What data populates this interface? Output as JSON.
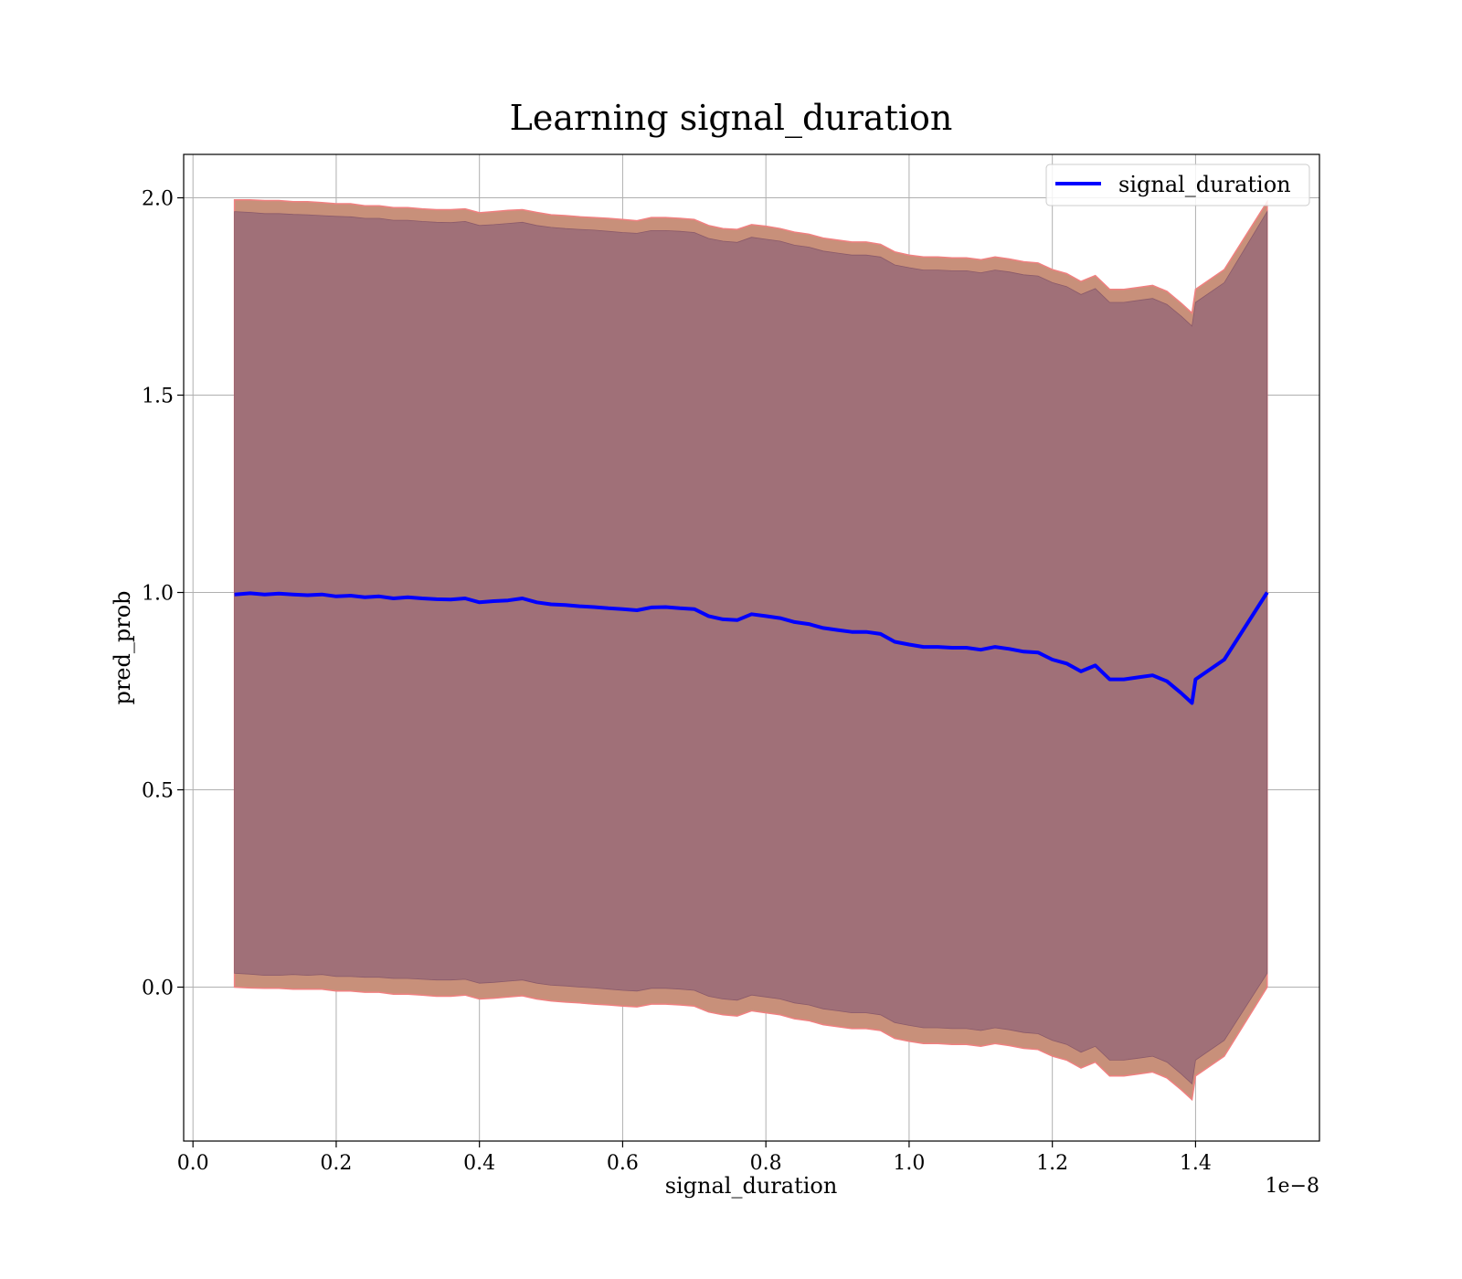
{
  "chart_data": {
    "type": "line",
    "title": "Learning signal_duration",
    "xlabel": "signal_duration",
    "ylabel": "pred_prob",
    "x_offset_text": "1e−8",
    "xlim": [
      -0.013,
      1.573
    ],
    "ylim": [
      -0.39,
      2.11
    ],
    "x_ticks": [
      0.0,
      0.2,
      0.4,
      0.6,
      0.8,
      1.0,
      1.2,
      1.4
    ],
    "x_tick_labels": [
      "0.0",
      "0.2",
      "0.4",
      "0.6",
      "0.8",
      "1.0",
      "1.2",
      "1.4"
    ],
    "y_ticks": [
      0.0,
      0.5,
      1.0,
      1.5,
      2.0
    ],
    "y_tick_labels": [
      "0.0",
      "0.5",
      "1.0",
      "1.5",
      "2.0"
    ],
    "grid": true,
    "legend_position": "top-right",
    "colors": {
      "line": "#0000ff",
      "band_outer": "#c8907a",
      "band_outer_edge": "#f08080",
      "band_inner": "#a07078"
    },
    "series": [
      {
        "name": "signal_duration",
        "x": [
          0.058,
          0.08,
          0.1,
          0.12,
          0.14,
          0.16,
          0.18,
          0.2,
          0.22,
          0.24,
          0.26,
          0.28,
          0.3,
          0.32,
          0.34,
          0.36,
          0.38,
          0.4,
          0.42,
          0.44,
          0.46,
          0.48,
          0.5,
          0.52,
          0.54,
          0.56,
          0.58,
          0.6,
          0.62,
          0.64,
          0.66,
          0.68,
          0.7,
          0.72,
          0.74,
          0.76,
          0.78,
          0.8,
          0.82,
          0.84,
          0.86,
          0.88,
          0.9,
          0.92,
          0.94,
          0.96,
          0.98,
          1.0,
          1.02,
          1.04,
          1.06,
          1.08,
          1.1,
          1.12,
          1.14,
          1.16,
          1.18,
          1.2,
          1.22,
          1.24,
          1.26,
          1.28,
          1.3,
          1.32,
          1.34,
          1.36,
          1.38,
          1.395,
          1.4,
          1.44,
          1.5
        ],
        "y": [
          0.995,
          0.998,
          0.995,
          0.997,
          0.995,
          0.993,
          0.995,
          0.99,
          0.992,
          0.988,
          0.99,
          0.985,
          0.988,
          0.985,
          0.983,
          0.982,
          0.985,
          0.975,
          0.978,
          0.98,
          0.985,
          0.975,
          0.97,
          0.968,
          0.965,
          0.963,
          0.96,
          0.958,
          0.955,
          0.962,
          0.963,
          0.96,
          0.958,
          0.94,
          0.932,
          0.93,
          0.945,
          0.94,
          0.935,
          0.925,
          0.92,
          0.91,
          0.905,
          0.9,
          0.9,
          0.895,
          0.875,
          0.868,
          0.862,
          0.862,
          0.86,
          0.86,
          0.855,
          0.862,
          0.857,
          0.85,
          0.848,
          0.83,
          0.82,
          0.8,
          0.815,
          0.78,
          0.78,
          0.785,
          0.79,
          0.775,
          0.745,
          0.72,
          0.78,
          0.83,
          1.0
        ],
        "y_outer_upper": [
          1.995,
          1.995,
          1.993,
          1.993,
          1.99,
          1.99,
          1.988,
          1.985,
          1.985,
          1.98,
          1.98,
          1.975,
          1.975,
          1.972,
          1.97,
          1.97,
          1.972,
          1.962,
          1.965,
          1.968,
          1.97,
          1.963,
          1.957,
          1.955,
          1.952,
          1.95,
          1.948,
          1.945,
          1.942,
          1.95,
          1.95,
          1.948,
          1.945,
          1.93,
          1.922,
          1.92,
          1.932,
          1.928,
          1.922,
          1.913,
          1.908,
          1.898,
          1.893,
          1.888,
          1.888,
          1.882,
          1.863,
          1.855,
          1.85,
          1.85,
          1.848,
          1.848,
          1.843,
          1.85,
          1.845,
          1.838,
          1.835,
          1.818,
          1.808,
          1.788,
          1.803,
          1.768,
          1.768,
          1.773,
          1.778,
          1.763,
          1.733,
          1.708,
          1.768,
          1.818,
          1.99
        ],
        "y_inner_upper": [
          1.965,
          1.963,
          1.96,
          1.96,
          1.958,
          1.957,
          1.955,
          1.953,
          1.952,
          1.948,
          1.948,
          1.943,
          1.943,
          1.94,
          1.938,
          1.937,
          1.94,
          1.93,
          1.932,
          1.935,
          1.938,
          1.93,
          1.925,
          1.922,
          1.92,
          1.918,
          1.915,
          1.912,
          1.91,
          1.917,
          1.917,
          1.915,
          1.912,
          1.897,
          1.89,
          1.887,
          1.9,
          1.895,
          1.89,
          1.88,
          1.875,
          1.865,
          1.86,
          1.855,
          1.855,
          1.85,
          1.83,
          1.823,
          1.817,
          1.817,
          1.815,
          1.815,
          1.81,
          1.817,
          1.812,
          1.805,
          1.802,
          1.785,
          1.775,
          1.755,
          1.77,
          1.735,
          1.735,
          1.74,
          1.745,
          1.73,
          1.7,
          1.675,
          1.735,
          1.785,
          1.965
        ],
        "y_inner_lower": [
          0.035,
          0.033,
          0.03,
          0.03,
          0.032,
          0.03,
          0.032,
          0.027,
          0.027,
          0.025,
          0.025,
          0.022,
          0.022,
          0.02,
          0.018,
          0.018,
          0.02,
          0.01,
          0.012,
          0.015,
          0.018,
          0.01,
          0.005,
          0.003,
          0.0,
          -0.002,
          -0.005,
          -0.008,
          -0.01,
          -0.003,
          -0.003,
          -0.005,
          -0.008,
          -0.023,
          -0.03,
          -0.033,
          -0.02,
          -0.025,
          -0.03,
          -0.04,
          -0.045,
          -0.055,
          -0.06,
          -0.065,
          -0.065,
          -0.07,
          -0.09,
          -0.097,
          -0.103,
          -0.103,
          -0.105,
          -0.105,
          -0.11,
          -0.103,
          -0.108,
          -0.115,
          -0.118,
          -0.135,
          -0.145,
          -0.165,
          -0.15,
          -0.185,
          -0.185,
          -0.18,
          -0.175,
          -0.19,
          -0.22,
          -0.245,
          -0.185,
          -0.135,
          0.035
        ],
        "y_outer_lower": [
          0.0,
          -0.002,
          -0.003,
          -0.003,
          -0.005,
          -0.005,
          -0.005,
          -0.01,
          -0.01,
          -0.013,
          -0.013,
          -0.018,
          -0.018,
          -0.02,
          -0.023,
          -0.023,
          -0.02,
          -0.03,
          -0.028,
          -0.025,
          -0.022,
          -0.03,
          -0.035,
          -0.038,
          -0.04,
          -0.043,
          -0.045,
          -0.048,
          -0.05,
          -0.043,
          -0.043,
          -0.045,
          -0.048,
          -0.063,
          -0.07,
          -0.073,
          -0.06,
          -0.065,
          -0.07,
          -0.08,
          -0.085,
          -0.095,
          -0.1,
          -0.105,
          -0.105,
          -0.11,
          -0.13,
          -0.137,
          -0.143,
          -0.143,
          -0.145,
          -0.145,
          -0.15,
          -0.143,
          -0.148,
          -0.155,
          -0.158,
          -0.175,
          -0.185,
          -0.205,
          -0.19,
          -0.225,
          -0.225,
          -0.22,
          -0.215,
          -0.23,
          -0.26,
          -0.285,
          -0.225,
          -0.175,
          0.0
        ]
      }
    ]
  }
}
